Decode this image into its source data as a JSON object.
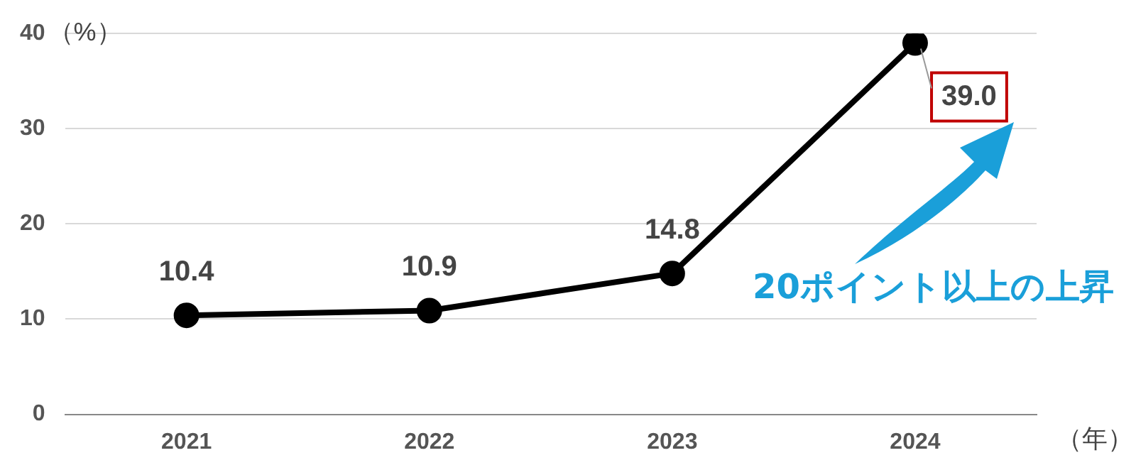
{
  "chart_data": {
    "type": "line",
    "ylabel": "（%）",
    "xlabel": "（年）",
    "categories": [
      "2021",
      "2022",
      "2023",
      "2024"
    ],
    "series": [
      {
        "color": "#000000",
        "values": [
          10.4,
          10.9,
          14.8,
          39.0
        ],
        "value_labels": [
          "10.4",
          "10.9",
          "14.8",
          "39.0"
        ]
      }
    ],
    "ylim": [
      0,
      40
    ],
    "yticks": [
      0,
      10,
      20,
      30,
      40
    ],
    "grid": "y",
    "legend": false,
    "marker": "circle",
    "line_style": "solid",
    "annotations": [
      "20ポイント以上の上昇"
    ]
  }
}
